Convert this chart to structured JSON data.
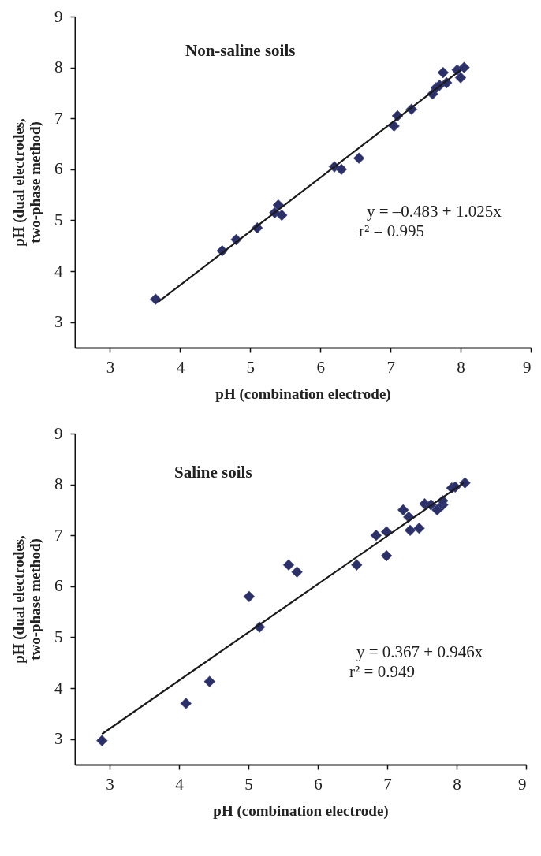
{
  "chart_data": [
    {
      "type": "scatter",
      "title": "Non-saline soils",
      "xlabel": "pH (combination electrode)",
      "ylabel": "pH (dual electrodes, two-phase method)",
      "xlim": [
        2.5,
        9
      ],
      "ylim": [
        2.5,
        9
      ],
      "xticks": [
        3,
        4,
        5,
        6,
        7,
        8,
        9
      ],
      "yticks": [
        3,
        4,
        5,
        6,
        7,
        8,
        9
      ],
      "grid": false,
      "marker": "diamond",
      "annotations": [
        "y = –0.483 + 1.025x",
        "r² = 0.995"
      ],
      "series": [
        {
          "color": "#2b3068",
          "x": [
            3.65,
            4.6,
            4.8,
            5.1,
            5.35,
            5.4,
            5.45,
            6.2,
            6.3,
            6.55,
            7.05,
            7.1,
            7.3,
            7.6,
            7.65,
            7.7,
            7.75,
            7.8,
            7.95,
            8.0,
            8.05
          ],
          "values": [
            3.45,
            4.4,
            4.62,
            4.85,
            5.15,
            5.3,
            5.1,
            6.05,
            6.0,
            6.22,
            6.85,
            7.05,
            7.18,
            7.48,
            7.6,
            7.65,
            7.9,
            7.7,
            7.95,
            7.8,
            8.0
          ]
        },
        {
          "type": "line",
          "color": "#1a1a1a",
          "line_style": "solid",
          "marker": "none",
          "x": [
            3.69,
            8.0
          ],
          "values": [
            3.4,
            7.95
          ]
        }
      ]
    },
    {
      "type": "scatter",
      "title": "Saline soils",
      "xlabel": "pH (combination electrode)",
      "ylabel": "pH (dual electrodes, two-phase method)",
      "xlim": [
        2.5,
        9
      ],
      "ylim": [
        2.5,
        9
      ],
      "xticks": [
        3,
        4,
        5,
        6,
        7,
        8,
        9
      ],
      "yticks": [
        3,
        4,
        5,
        6,
        7,
        8,
        9
      ],
      "grid": false,
      "marker": "diamond",
      "annotations": [
        "y = 0.367 + 0.946x",
        "r² = 0.949"
      ],
      "series": [
        {
          "color": "#2b3068",
          "x": [
            2.89,
            4.1,
            4.44,
            5.01,
            5.16,
            5.58,
            5.7,
            6.56,
            6.84,
            6.99,
            6.99,
            7.23,
            7.31,
            7.33,
            7.46,
            7.54,
            7.63,
            7.72,
            7.8,
            7.8,
            7.93,
            7.98,
            8.12
          ],
          "values": [
            2.97,
            3.7,
            4.13,
            5.8,
            5.2,
            6.42,
            6.28,
            6.42,
            7.0,
            7.07,
            6.6,
            7.5,
            7.36,
            7.1,
            7.14,
            7.62,
            7.6,
            7.5,
            7.6,
            7.68,
            7.93,
            7.95,
            8.03
          ]
        },
        {
          "type": "line",
          "color": "#1a1a1a",
          "line_style": "solid",
          "marker": "none",
          "x": [
            2.89,
            8.1
          ],
          "values": [
            3.1,
            8.03
          ]
        }
      ]
    }
  ]
}
